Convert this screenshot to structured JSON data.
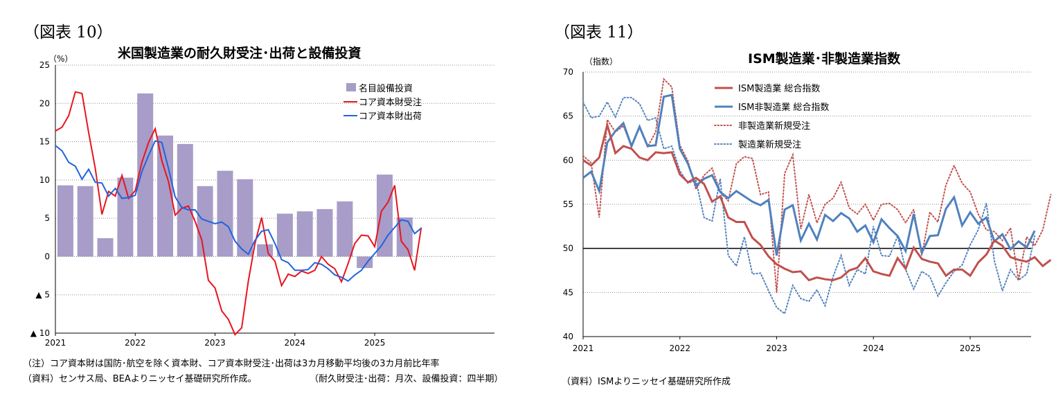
{
  "left_panel": {
    "fig_label": "（図表 10）",
    "title": "米国製造業の耐久財受注･出荷と設備投資",
    "unit": "（%）",
    "note1": "（注）コア資本財は国防･航空を除く資本財、コア資本財受注･出荷は3カ月移動平均後の3カ月前比年率",
    "note2": "（資料）センサス局、BEAよりニッセイ基礎研究所作成。",
    "note3": "（耐久財受注･出荷：月次、設備投資：四半期）"
  },
  "right_panel": {
    "fig_label": "（図表 11）",
    "title": "ISM製造業･非製造業指数",
    "unit": "（指数）",
    "note1": "（資料）ISMよりニッセイ基礎研究所作成"
  },
  "chart_data": [
    {
      "type": "bar+line",
      "title": "米国製造業の耐久財受注･出荷と設備投資",
      "ylabel": "（%）",
      "ylim": [
        -10,
        25
      ],
      "yticks": [
        25,
        20,
        15,
        10,
        5,
        0,
        -5,
        -10
      ],
      "ytick_labels": [
        "25",
        "20",
        "15",
        "10",
        "5",
        "0",
        "▲ 5",
        "▲ 10"
      ],
      "x_start": 2021.0,
      "xlim": [
        2021.0,
        2026.5
      ],
      "xticks": [
        2021,
        2022,
        2023,
        2024,
        2025
      ],
      "xtick_labels": [
        "2021",
        "2022",
        "2023",
        "2024",
        "2025"
      ],
      "grid": "dotted horizontal",
      "legend": "top-right",
      "bars": {
        "name": "名目設備投資",
        "color": "#a89cc8",
        "values": [
          9.3,
          9.2,
          2.4,
          10.3,
          21.3,
          15.8,
          14.7,
          9.2,
          11.2,
          10.1,
          1.6,
          5.6,
          5.9,
          6.2,
          7.2,
          -1.5,
          10.7,
          5.1
        ]
      },
      "series": [
        {
          "name": "コア資本財受注",
          "color": "#e8141e",
          "values": [
            16.4,
            16.9,
            18.4,
            21.5,
            21.3,
            16.2,
            11.5,
            5.5,
            8.5,
            7.9,
            10.6,
            7.6,
            8.6,
            12.3,
            14.9,
            16.7,
            12.5,
            9.8,
            5.4,
            6.3,
            6.6,
            4.6,
            2.2,
            -3.1,
            -4.1,
            -7.1,
            -8.2,
            -10.2,
            -9.3,
            -3.2,
            1.7,
            5.1,
            0.4,
            -0.6,
            -3.8,
            -2.3,
            -2.6,
            -1.9,
            -2.2,
            -1.8,
            0.0,
            -1.0,
            -1.6,
            -3.3,
            -0.9,
            1.7,
            2.8,
            2.7,
            1.3,
            5.9,
            7.1,
            9.3,
            2.0,
            0.9,
            -1.8,
            3.8
          ]
        },
        {
          "name": "コア資本財出荷",
          "color": "#1e64dc",
          "values": [
            14.5,
            13.8,
            12.3,
            11.8,
            10.1,
            11.4,
            9.7,
            9.6,
            7.9,
            8.9,
            7.6,
            7.7,
            8.0,
            11.1,
            13.2,
            15.1,
            14.9,
            11.5,
            7.8,
            6.4,
            6.1,
            6.1,
            4.9,
            4.6,
            4.3,
            4.5,
            3.9,
            2.0,
            1.0,
            0.3,
            2.1,
            3.3,
            3.5,
            1.7,
            -0.4,
            -0.8,
            -1.8,
            -1.8,
            -1.7,
            -0.8,
            -1.0,
            -1.6,
            -2.4,
            -2.7,
            -3.2,
            -2.4,
            -1.8,
            -0.6,
            0.4,
            1.4,
            2.8,
            3.8,
            4.8,
            4.6,
            3.0,
            3.7
          ]
        }
      ]
    },
    {
      "type": "line",
      "title": "ISM製造業･非製造業指数",
      "ylabel": "（指数）",
      "ylim": [
        40,
        70
      ],
      "yticks": [
        70,
        65,
        60,
        55,
        50,
        45,
        40
      ],
      "ytick_labels": [
        "70",
        "65",
        "60",
        "55",
        "50",
        "45",
        "40"
      ],
      "x_start": 2021.0,
      "xlim": [
        2021.0,
        2025.63
      ],
      "xticks": [
        2021,
        2022,
        2023,
        2024,
        2025
      ],
      "xtick_labels": [
        "2021",
        "2022",
        "2023",
        "2024",
        "2025"
      ],
      "grid": "dotted horizontal",
      "reference_line": 50,
      "legend": "top-left",
      "series": [
        {
          "name": "ISM製造業 総合指数",
          "color": "#c0504d",
          "style": "solid",
          "values": [
            60.0,
            59.4,
            60.3,
            64.0,
            60.8,
            61.6,
            61.3,
            60.3,
            60.0,
            60.9,
            60.8,
            60.9,
            58.4,
            57.5,
            58.0,
            57.3,
            55.3,
            55.9,
            53.5,
            53.0,
            53.0,
            51.2,
            50.4,
            49.1,
            48.2,
            47.7,
            47.3,
            47.4,
            46.4,
            46.7,
            46.5,
            46.4,
            46.7,
            47.5,
            47.8,
            48.9,
            47.4,
            47.1,
            46.9,
            48.9,
            47.7,
            50.1,
            48.8,
            48.5,
            48.3,
            46.9,
            47.6,
            47.6,
            46.9,
            48.4,
            49.3,
            50.9,
            50.3,
            49.0,
            48.7,
            48.5,
            49.0,
            48.0,
            48.7
          ]
        },
        {
          "name": "ISM非製造業 総合指数",
          "color": "#4f81bd",
          "style": "solid",
          "values": [
            58.0,
            58.7,
            56.5,
            62.0,
            63.3,
            64.2,
            61.6,
            63.8,
            61.6,
            61.7,
            67.2,
            67.4,
            61.3,
            59.6,
            57.1,
            57.9,
            58.3,
            56.4,
            55.7,
            56.5,
            55.9,
            55.3,
            54.9,
            55.5,
            49.2,
            54.4,
            54.9,
            50.9,
            52.8,
            51.0,
            53.8,
            53.1,
            54.0,
            53.4,
            51.9,
            52.6,
            50.7,
            53.3,
            52.3,
            51.4,
            49.7,
            53.9,
            49.5,
            51.4,
            51.5,
            54.5,
            55.8,
            52.6,
            54.1,
            52.8,
            53.5,
            50.8,
            51.6,
            49.9,
            50.8,
            50.1,
            52.0
          ]
        },
        {
          "name": "非製造業新規受注",
          "color": "#c0504d",
          "style": "dotted",
          "values": [
            60.5,
            59.7,
            53.5,
            64.6,
            63.2,
            63.9,
            61.5,
            63.7,
            61.5,
            63.2,
            69.2,
            68.3,
            61.7,
            59.9,
            56.7,
            58.3,
            59.1,
            56.4,
            55.4,
            59.6,
            60.4,
            60.2,
            56.1,
            56.4,
            45.0,
            58.5,
            60.6,
            52.2,
            56.1,
            52.9,
            55.0,
            55.7,
            57.5,
            54.6,
            53.9,
            55.0,
            53.2,
            55.0,
            55.1,
            54.4,
            52.9,
            54.4,
            49.2,
            54.1,
            53.0,
            57.2,
            59.4,
            57.4,
            56.4,
            53.9,
            52.1,
            51.9,
            50.9,
            52.3,
            46.4,
            51.3,
            50.3,
            52.1,
            56.1
          ]
        },
        {
          "name": "製造業新規受注",
          "color": "#4f81bd",
          "style": "dotted",
          "values": [
            66.6,
            64.8,
            65.0,
            66.6,
            64.9,
            67.1,
            67.1,
            66.4,
            64.5,
            64.8,
            61.3,
            61.6,
            58.8,
            57.4,
            57.7,
            53.5,
            53.1,
            57.9,
            49.2,
            48.0,
            51.3,
            47.1,
            47.2,
            45.2,
            43.3,
            42.6,
            45.8,
            44.3,
            44.0,
            45.3,
            43.5,
            46.8,
            49.2,
            45.8,
            47.6,
            47.1,
            52.5,
            49.2,
            49.1,
            51.4,
            47.6,
            45.4,
            47.4,
            46.8,
            44.6,
            46.1,
            47.4,
            48.1,
            50.4,
            52.1,
            55.1,
            48.6,
            45.2,
            47.6,
            46.4,
            47.1,
            51.4
          ]
        }
      ]
    }
  ]
}
